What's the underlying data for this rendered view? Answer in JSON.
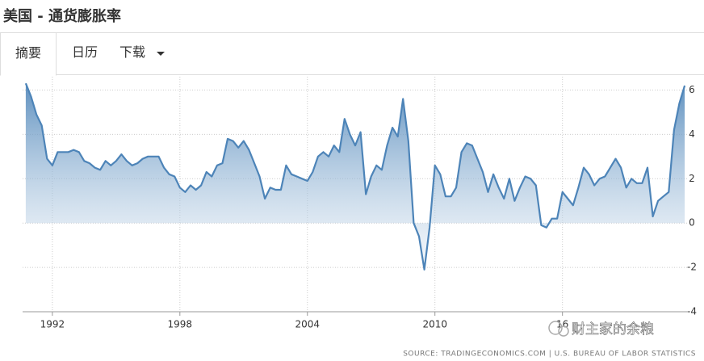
{
  "header": {
    "title": "美国 - 通货膨胀率"
  },
  "tabs": [
    "摘要",
    "日历",
    "下载"
  ],
  "watermark": "财主家的余粮",
  "chart_data": {
    "type": "area",
    "source": "SOURCE: TRADINGECONOMICS.COM | U.S. BUREAU OF LABOR STATISTICS",
    "color": "#4d84b8",
    "grid": true,
    "xlim": [
      1990.6,
      2021.9
    ],
    "ylim": [
      -4,
      6.6
    ],
    "xticks": [
      1992,
      1998,
      2004,
      2010,
      {
        "value": 2016,
        "label": "16"
      }
    ],
    "yticks": [
      -4,
      -2,
      0,
      2,
      4,
      6
    ],
    "x": [
      1990.75,
      1991,
      1991.25,
      1991.5,
      1991.75,
      1992,
      1992.25,
      1992.5,
      1992.75,
      1993,
      1993.25,
      1993.5,
      1993.75,
      1994,
      1994.25,
      1994.5,
      1994.75,
      1995,
      1995.25,
      1995.5,
      1995.75,
      1996,
      1996.25,
      1996.5,
      1996.75,
      1997,
      1997.25,
      1997.5,
      1997.75,
      1998,
      1998.25,
      1998.5,
      1998.75,
      1999,
      1999.25,
      1999.5,
      1999.75,
      2000,
      2000.25,
      2000.5,
      2000.75,
      2001,
      2001.25,
      2001.5,
      2001.75,
      2002,
      2002.25,
      2002.5,
      2002.75,
      2003,
      2003.25,
      2003.5,
      2003.75,
      2004,
      2004.25,
      2004.5,
      2004.75,
      2005,
      2005.25,
      2005.5,
      2005.75,
      2006,
      2006.25,
      2006.5,
      2006.75,
      2007,
      2007.25,
      2007.5,
      2007.75,
      2008,
      2008.25,
      2008.5,
      2008.75,
      2009,
      2009.25,
      2009.5,
      2009.75,
      2010,
      2010.25,
      2010.5,
      2010.75,
      2011,
      2011.25,
      2011.5,
      2011.75,
      2012,
      2012.25,
      2012.5,
      2012.75,
      2013,
      2013.25,
      2013.5,
      2013.75,
      2014,
      2014.25,
      2014.5,
      2014.75,
      2015,
      2015.25,
      2015.5,
      2015.75,
      2016,
      2016.25,
      2016.5,
      2016.75,
      2017,
      2017.25,
      2017.5,
      2017.75,
      2018,
      2018.25,
      2018.5,
      2018.75,
      2019,
      2019.25,
      2019.5,
      2019.75,
      2020,
      2020.25,
      2020.5,
      2020.75,
      2021,
      2021.25,
      2021.5,
      2021.75
    ],
    "values": [
      6.3,
      5.7,
      4.9,
      4.4,
      2.9,
      2.6,
      3.2,
      3.2,
      3.2,
      3.3,
      3.2,
      2.8,
      2.7,
      2.5,
      2.4,
      2.8,
      2.6,
      2.8,
      3.1,
      2.8,
      2.6,
      2.7,
      2.9,
      3.0,
      3.0,
      3.0,
      2.5,
      2.2,
      2.1,
      1.6,
      1.4,
      1.7,
      1.5,
      1.7,
      2.3,
      2.1,
      2.6,
      2.7,
      3.8,
      3.7,
      3.4,
      3.7,
      3.3,
      2.7,
      2.1,
      1.1,
      1.6,
      1.5,
      1.5,
      2.6,
      2.2,
      2.1,
      2.0,
      1.9,
      2.3,
      3.0,
      3.2,
      3.0,
      3.5,
      3.2,
      4.7,
      4.0,
      3.5,
      4.1,
      1.3,
      2.1,
      2.6,
      2.4,
      3.5,
      4.3,
      3.9,
      5.6,
      3.7,
      0.0,
      -0.6,
      -2.1,
      -0.2,
      2.6,
      2.2,
      1.2,
      1.2,
      1.6,
      3.2,
      3.6,
      3.5,
      2.9,
      2.3,
      1.4,
      2.2,
      1.6,
      1.1,
      2.0,
      1.0,
      1.6,
      2.1,
      2.0,
      1.7,
      -0.1,
      -0.2,
      0.2,
      0.2,
      1.4,
      1.1,
      0.8,
      1.6,
      2.5,
      2.2,
      1.7,
      2.0,
      2.1,
      2.5,
      2.9,
      2.5,
      1.6,
      2.0,
      1.8,
      1.8,
      2.5,
      0.3,
      1.0,
      1.2,
      1.4,
      4.2,
      5.4,
      6.2
    ]
  }
}
